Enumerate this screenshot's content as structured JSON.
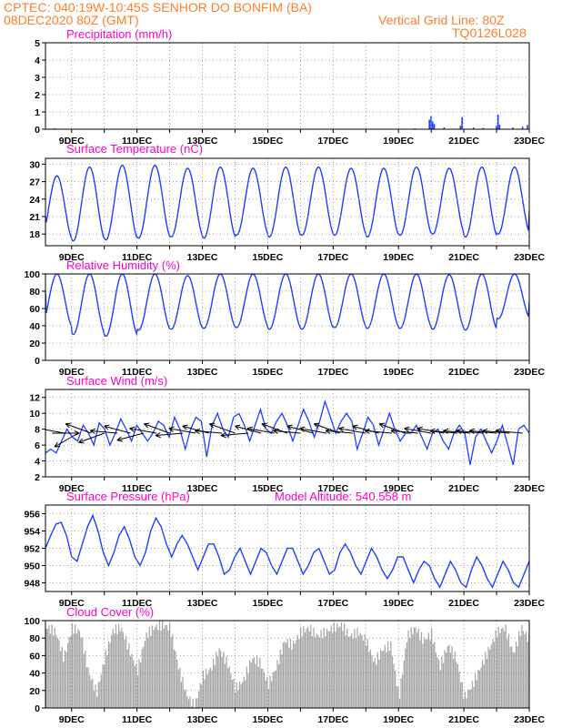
{
  "header": {
    "line1": "CPTEC:   040:19W-10:45S   SENHOR DO BONFIM (BA)",
    "line2": "08DEC2020 80Z (GMT)",
    "grid_note": "Vertical Grid Line: 80Z",
    "run_id": "TQ0126L028"
  },
  "colors": {
    "header": "#ff7f27",
    "panel_title": "#ff00cc",
    "series": "#1f3fff",
    "cloud": "#a9a9a9",
    "grid": "#888888"
  },
  "chart_data": [
    {
      "type": "bar",
      "title": "Precipitation  (mm/h)",
      "x_tick_labels": [
        "9DEC",
        "11DEC",
        "13DEC",
        "15DEC",
        "17DEC",
        "19DEC",
        "21DEC",
        "23DEC"
      ],
      "x_tick_days": [
        9,
        11,
        13,
        15,
        17,
        19,
        21,
        23
      ],
      "xlim_days": [
        8.2,
        23.0
      ],
      "ylim": [
        0,
        5
      ],
      "yticks": [
        0,
        1,
        2,
        3,
        4,
        5
      ],
      "grid": true,
      "x_days": [
        8.5,
        9.0,
        9.5,
        10.0,
        10.5,
        11.0,
        11.5,
        12.0,
        12.5,
        13.0,
        13.5,
        14.0,
        14.5,
        15.0,
        15.5,
        16.0,
        16.5,
        17.0,
        17.5,
        18.0,
        18.5,
        19.0,
        19.5,
        19.95,
        20.0,
        20.05,
        20.1,
        20.4,
        20.9,
        20.95,
        21.3,
        21.6,
        22.0,
        22.05,
        22.1,
        22.5,
        22.8,
        22.95
      ],
      "values": [
        0.05,
        0.03,
        0.03,
        0.03,
        0.03,
        0.03,
        0.03,
        0.03,
        0.03,
        0.03,
        0.03,
        0.03,
        0.03,
        0.03,
        0.03,
        0.03,
        0.03,
        0.03,
        0.03,
        0.03,
        0.03,
        0.03,
        0.05,
        0.55,
        0.75,
        0.45,
        0.3,
        0.1,
        0.2,
        0.7,
        0.1,
        0.08,
        0.2,
        0.85,
        0.25,
        0.1,
        0.15,
        0.25
      ]
    },
    {
      "type": "line",
      "title": "Surface Temperature  (nC)",
      "x_tick_labels": [
        "9DEC",
        "11DEC",
        "13DEC",
        "15DEC",
        "17DEC",
        "19DEC",
        "21DEC",
        "23DEC"
      ],
      "x_tick_days": [
        9,
        11,
        13,
        15,
        17,
        19,
        21,
        23
      ],
      "xlim_days": [
        8.2,
        23.0
      ],
      "ylim": [
        16,
        31
      ],
      "yticks": [
        18,
        21,
        24,
        27,
        30
      ],
      "grid": true,
      "daily_max": [
        28.0,
        29.5,
        29.8,
        29.8,
        29.3,
        29.5,
        29.3,
        29.5,
        29.5,
        29.3,
        29.3,
        29.5,
        29.3,
        29.5,
        29.5
      ],
      "daily_min": [
        17.0,
        16.8,
        17.0,
        17.3,
        17.5,
        17.3,
        17.8,
        17.5,
        17.8,
        17.8,
        17.5,
        17.8,
        18.0,
        17.5,
        18.0
      ],
      "start_value": 21.0,
      "end_value": 22.0
    },
    {
      "type": "line",
      "title": "Relative Humidity  (%)",
      "x_tick_labels": [
        "9DEC",
        "11DEC",
        "13DEC",
        "15DEC",
        "17DEC",
        "19DEC",
        "21DEC",
        "23DEC"
      ],
      "x_tick_days": [
        9,
        11,
        13,
        15,
        17,
        19,
        21,
        23
      ],
      "xlim_days": [
        8.2,
        23.0
      ],
      "ylim": [
        0,
        100
      ],
      "yticks": [
        0,
        20,
        40,
        60,
        80,
        100
      ],
      "grid": true,
      "daily_max": [
        100,
        100,
        100,
        100,
        98,
        100,
        100,
        100,
        100,
        100,
        100,
        100,
        99,
        100,
        100
      ],
      "daily_min": [
        38,
        30,
        28,
        35,
        36,
        37,
        38,
        36,
        36,
        38,
        37,
        37,
        36,
        35,
        48
      ],
      "start_value": 80,
      "end_value": 68
    },
    {
      "type": "line",
      "title": "Surface Wind  (m/s)",
      "x_tick_labels": [
        "9DEC",
        "11DEC",
        "13DEC",
        "15DEC",
        "17DEC",
        "19DEC",
        "21DEC",
        "23DEC"
      ],
      "x_tick_days": [
        9,
        11,
        13,
        15,
        17,
        19,
        21,
        23
      ],
      "xlim_days": [
        8.2,
        23.0
      ],
      "ylim": [
        2,
        13
      ],
      "yticks": [
        2,
        4,
        6,
        8,
        10,
        12
      ],
      "grid": true,
      "speed": [
        5,
        5.5,
        5,
        6.5,
        8,
        7,
        6.5,
        8.5,
        7.5,
        6,
        8.8,
        8,
        6,
        7.5,
        9.3,
        8,
        6.5,
        8.5,
        7.5,
        6.5,
        7.5,
        9,
        8.5,
        7,
        9.5,
        8,
        5.5,
        8,
        9.5,
        9,
        4.5,
        8.5,
        10,
        8,
        7,
        9.5,
        10,
        8.5,
        6.5,
        8.5,
        10.5,
        8,
        7.5,
        9,
        10,
        8.5,
        6.5,
        8.5,
        10.5,
        9,
        7,
        9,
        11.5,
        9.5,
        7.5,
        9,
        10,
        9,
        5.5,
        7.5,
        9.5,
        8.5,
        6,
        8,
        10,
        8,
        6.5,
        7.5,
        7.5,
        8.5,
        7,
        5.5,
        7.5,
        8,
        6.5,
        5.5,
        7.5,
        8.5,
        7.5,
        3.5,
        7,
        8,
        6.5,
        5,
        6.5,
        8.5,
        6,
        3.5,
        8,
        8.5,
        7.5
      ],
      "vector_days": [
        8.4,
        8.8,
        9.2,
        9.6,
        10.0,
        10.4,
        10.8,
        11.2,
        11.6,
        12.0,
        12.4,
        12.8,
        13.2,
        13.6,
        14.0,
        14.4,
        14.8,
        15.2,
        15.6,
        16.0,
        16.4,
        16.8,
        17.2,
        17.6,
        18.0,
        18.4,
        18.8,
        19.2,
        19.6,
        20.0,
        20.4,
        20.8,
        21.2,
        21.6,
        22.0,
        22.4,
        22.8
      ],
      "vector_dir": [
        0,
        170,
        210,
        160,
        200,
        175,
        165,
        195,
        170,
        160,
        185,
        170,
        165,
        175,
        160,
        185,
        165,
        170,
        160,
        175,
        165,
        170,
        160,
        175,
        170,
        165,
        175,
        160,
        175,
        170,
        170,
        175,
        175,
        175,
        175,
        175,
        175
      ]
    },
    {
      "type": "line",
      "title": "Surface Pressure  (hPa)",
      "annotation": "Model Altitude: 540.558  m",
      "x_tick_labels": [
        "9DEC",
        "11DEC",
        "13DEC",
        "15DEC",
        "17DEC",
        "19DEC",
        "21DEC",
        "23DEC"
      ],
      "x_tick_days": [
        9,
        11,
        13,
        15,
        17,
        19,
        21,
        23
      ],
      "xlim_days": [
        8.2,
        23.0
      ],
      "ylim": [
        947,
        957
      ],
      "yticks": [
        948,
        950,
        952,
        954,
        956
      ],
      "grid": true,
      "values": [
        952,
        953.5,
        954.8,
        955,
        953.5,
        951,
        950.5,
        952.5,
        954.5,
        955.8,
        954,
        951.5,
        950,
        951.5,
        953.5,
        954.5,
        953,
        951,
        950,
        951.5,
        954,
        955.5,
        954.5,
        952.5,
        951,
        952.5,
        953.5,
        952.5,
        951,
        949.5,
        951,
        952.5,
        952.5,
        951,
        949,
        949.5,
        951,
        952,
        950.5,
        949,
        950.5,
        952,
        951.5,
        950,
        949,
        950.5,
        952,
        952,
        950.5,
        949,
        950,
        951.5,
        952,
        950.5,
        949,
        949.5,
        951.5,
        952.5,
        951.5,
        950,
        949,
        950.5,
        952,
        951,
        949.5,
        948.5,
        949.5,
        951,
        951,
        949.5,
        948,
        949.5,
        950.5,
        950,
        948.5,
        947.5,
        949,
        950.5,
        949.5,
        948,
        947.5,
        949.5,
        951,
        950,
        948.5,
        947.5,
        949,
        950.5,
        949.5,
        948,
        947.5,
        949,
        950.5
      ]
    },
    {
      "type": "bar",
      "title": "Cloud Cover  (%)",
      "x_tick_labels": [
        "9DEC",
        "11DEC",
        "13DEC",
        "15DEC",
        "17DEC",
        "19DEC",
        "21DEC",
        "23DEC"
      ],
      "x_tick_days": [
        9,
        11,
        13,
        15,
        17,
        19,
        21,
        23
      ],
      "xlim_days": [
        8.2,
        23.0
      ],
      "ylim": [
        0,
        100
      ],
      "yticks": [
        0,
        20,
        40,
        60,
        80,
        100
      ],
      "grid": true,
      "x_days": [
        8.25,
        8.5,
        8.75,
        9.0,
        9.25,
        9.5,
        9.75,
        10.0,
        10.25,
        10.5,
        10.75,
        11.0,
        11.25,
        11.5,
        11.75,
        12.0,
        12.25,
        12.5,
        12.75,
        13.0,
        13.25,
        13.5,
        13.75,
        14.0,
        14.25,
        14.5,
        14.75,
        15.0,
        15.25,
        15.5,
        15.75,
        16.0,
        16.25,
        16.5,
        16.75,
        17.0,
        17.25,
        17.5,
        17.75,
        18.0,
        18.25,
        18.5,
        18.75,
        19.0,
        19.25,
        19.5,
        19.75,
        20.0,
        20.25,
        20.5,
        20.75,
        21.0,
        21.25,
        21.5,
        21.75,
        22.0,
        22.25,
        22.5,
        22.75,
        23.0
      ],
      "values": [
        95,
        90,
        60,
        95,
        90,
        45,
        20,
        60,
        92,
        95,
        70,
        45,
        85,
        95,
        98,
        95,
        50,
        18,
        5,
        40,
        48,
        70,
        55,
        25,
        35,
        60,
        55,
        30,
        50,
        80,
        75,
        90,
        95,
        85,
        90,
        95,
        98,
        85,
        90,
        80,
        55,
        70,
        75,
        15,
        85,
        95,
        80,
        88,
        50,
        75,
        60,
        15,
        30,
        50,
        70,
        90,
        95,
        65,
        95,
        80
      ]
    }
  ]
}
